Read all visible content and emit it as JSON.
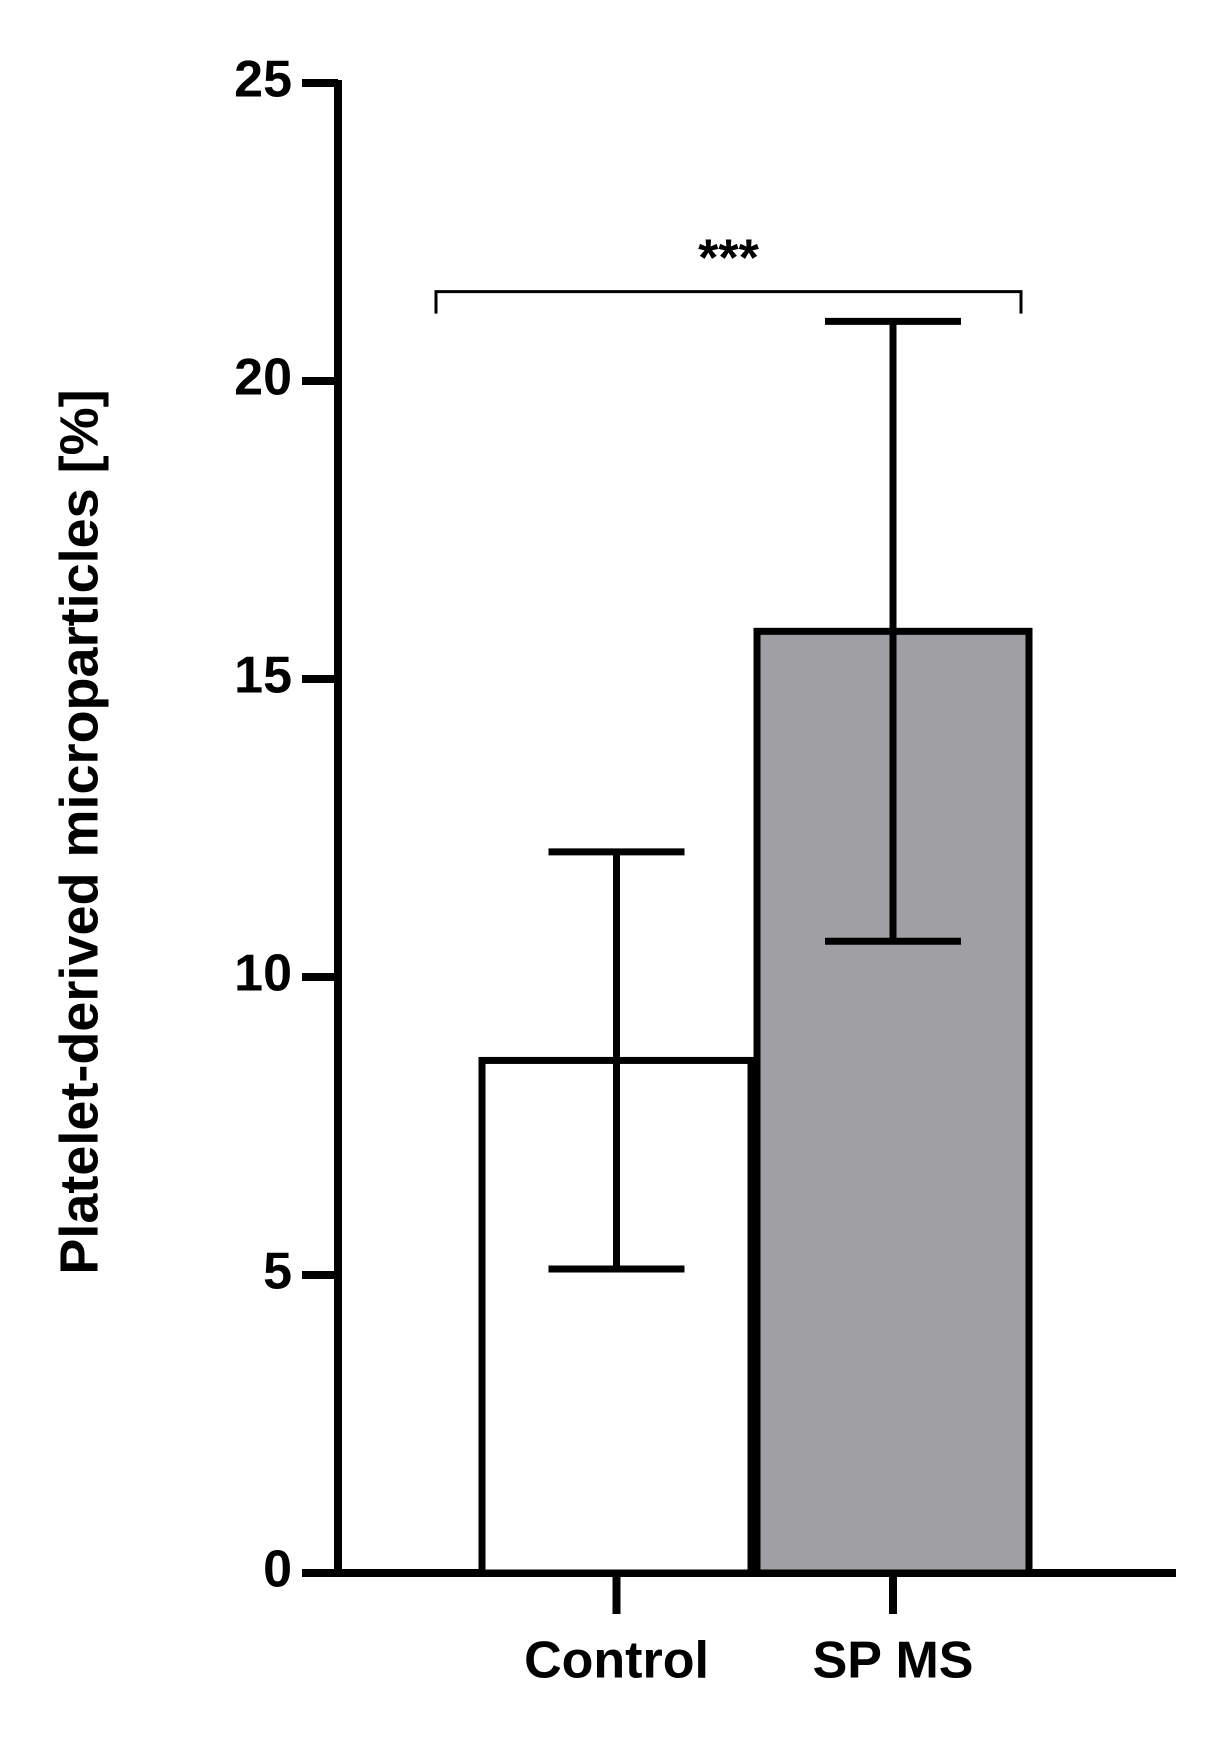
{
  "chart_data": {
    "type": "bar",
    "y_label": "Platelet-derived microparticles [%]",
    "categories": [
      "Control",
      "SP MS"
    ],
    "values": [
      8.6,
      15.8
    ],
    "errors": [
      3.5,
      5.2
    ],
    "colors": [
      "#ffffff",
      "#a0a0a4"
    ],
    "ylim": [
      0,
      25
    ],
    "yticks": [
      0,
      5,
      10,
      15,
      20,
      25
    ],
    "grid": false,
    "annotations": [
      {
        "text": "***",
        "from": 0,
        "to": 1,
        "y": 21.5
      }
    ]
  }
}
